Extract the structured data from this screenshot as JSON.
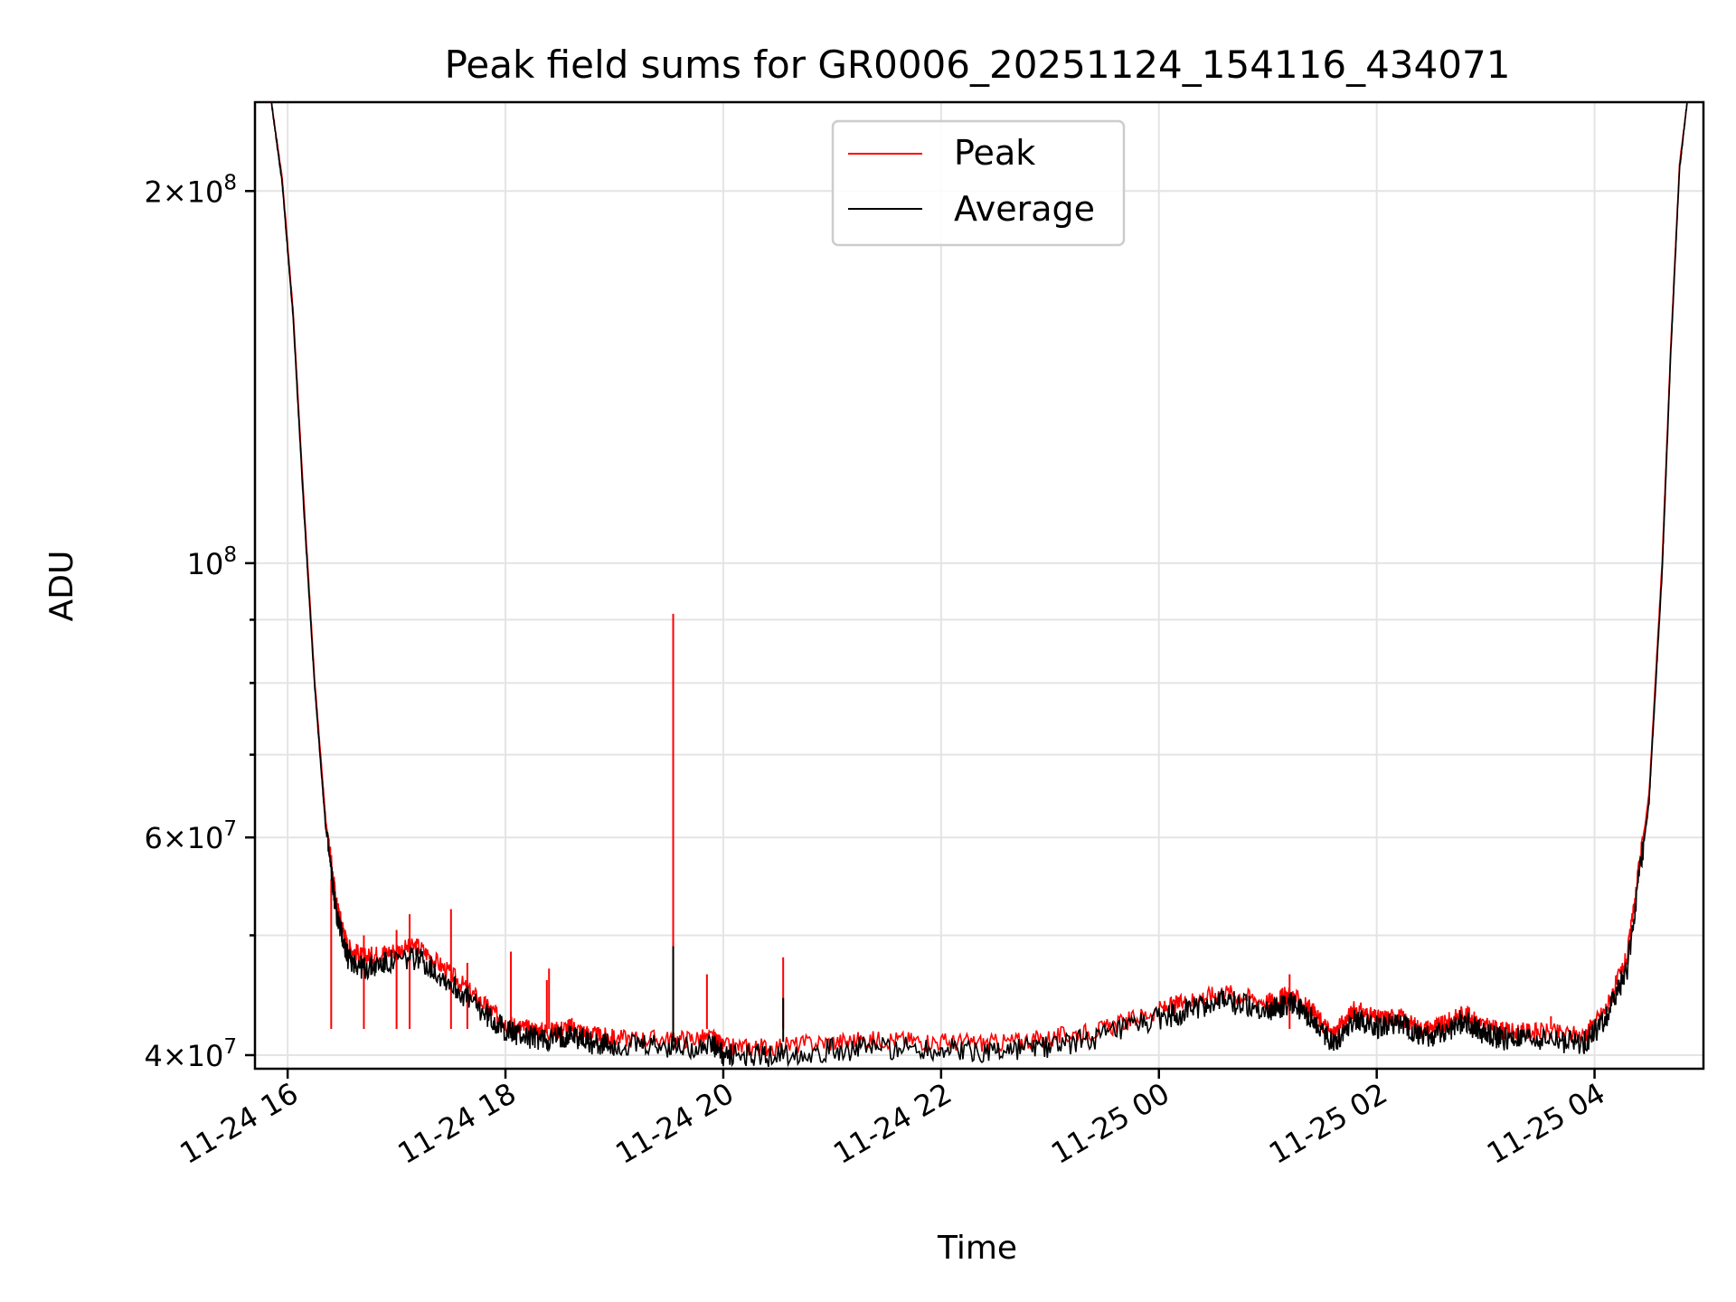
{
  "chart_data": {
    "type": "line",
    "title": "Peak field sums for GR0006_20251124_154116_434071",
    "xlabel": "Time",
    "ylabel": "ADU",
    "yscale": "log",
    "ylim": [
      39000000,
      236000000
    ],
    "xlim_hours": [
      15.7,
      29.0
    ],
    "grid": true,
    "legend_position": "upper center",
    "x_ticks": [
      {
        "hour": 16,
        "label": "11-24 16"
      },
      {
        "hour": 18,
        "label": "11-24 18"
      },
      {
        "hour": 20,
        "label": "11-24 20"
      },
      {
        "hour": 22,
        "label": "11-24 22"
      },
      {
        "hour": 24,
        "label": "11-25 00"
      },
      {
        "hour": 26,
        "label": "11-25 02"
      },
      {
        "hour": 28,
        "label": "11-25 04"
      }
    ],
    "y_ticks": [
      {
        "value": 40000000,
        "base": "4",
        "exp": "7"
      },
      {
        "value": 60000000,
        "base": "6",
        "exp": "7"
      },
      {
        "value": 100000000,
        "base": "",
        "exp": "8"
      },
      {
        "value": 200000000,
        "base": "2",
        "exp": "8"
      }
    ],
    "y_minor_ticks": [
      50000000,
      70000000,
      80000000,
      90000000
    ],
    "series": [
      {
        "name": "Peak",
        "color": "#ff0000",
        "x_hours": [
          15.85,
          15.95,
          16.05,
          16.15,
          16.25,
          16.35,
          16.45,
          16.55,
          16.7,
          16.9,
          17.2,
          17.5,
          17.8,
          18.0,
          18.2,
          18.4,
          18.6,
          18.8,
          19.0,
          19.5,
          19.9,
          20.0,
          20.4,
          21.0,
          21.5,
          22.0,
          22.5,
          23.0,
          23.5,
          24.0,
          24.3,
          24.6,
          25.0,
          25.2,
          25.4,
          25.6,
          25.8,
          26.0,
          26.2,
          26.4,
          26.6,
          26.8,
          27.0,
          27.2,
          27.5,
          27.9,
          28.1,
          28.3,
          28.5,
          28.62,
          28.7,
          28.78,
          28.85
        ],
        "values": [
          236000000,
          205000000,
          160000000,
          112000000,
          80000000,
          62000000,
          53000000,
          49000000,
          48000000,
          48500000,
          49000000,
          46500000,
          44000000,
          42500000,
          42000000,
          41800000,
          42200000,
          41500000,
          41300000,
          41200000,
          41300000,
          40600000,
          40600000,
          41000000,
          41200000,
          41000000,
          40900000,
          41300000,
          42000000,
          43500000,
          44300000,
          45000000,
          44200000,
          44800000,
          43500000,
          41500000,
          43600000,
          42800000,
          43000000,
          42000000,
          42300000,
          43300000,
          42200000,
          41800000,
          41800000,
          41500000,
          43500000,
          48000000,
          65000000,
          100000000,
          150000000,
          210000000,
          236000000
        ],
        "spikes": [
          {
            "hour": 16.4,
            "value": 55500000
          },
          {
            "hour": 16.7,
            "value": 50000000
          },
          {
            "hour": 17.0,
            "value": 50500000
          },
          {
            "hour": 17.12,
            "value": 52000000
          },
          {
            "hour": 17.5,
            "value": 52500000
          },
          {
            "hour": 17.65,
            "value": 47500000
          },
          {
            "hour": 18.05,
            "value": 48500000
          },
          {
            "hour": 18.4,
            "value": 47000000
          },
          {
            "hour": 18.38,
            "value": 46000000
          },
          {
            "hour": 19.54,
            "value": 91000000
          },
          {
            "hour": 19.85,
            "value": 46500000
          },
          {
            "hour": 20.55,
            "value": 48000000
          },
          {
            "hour": 25.2,
            "value": 46500000
          },
          {
            "hour": 27.6,
            "value": 43000000
          }
        ]
      },
      {
        "name": "Average",
        "color": "#000000",
        "x_hours": [
          15.85,
          15.95,
          16.05,
          16.15,
          16.25,
          16.35,
          16.45,
          16.55,
          16.7,
          16.9,
          17.2,
          17.5,
          17.8,
          18.0,
          18.2,
          18.4,
          18.6,
          18.8,
          19.0,
          19.5,
          19.9,
          20.0,
          20.4,
          21.0,
          21.5,
          22.0,
          22.5,
          23.0,
          23.5,
          24.0,
          24.3,
          24.6,
          25.0,
          25.2,
          25.4,
          25.6,
          25.8,
          26.0,
          26.2,
          26.4,
          26.6,
          26.8,
          27.0,
          27.2,
          27.5,
          27.9,
          28.1,
          28.3,
          28.5,
          28.62,
          28.7,
          28.78,
          28.85
        ],
        "values": [
          236000000,
          203000000,
          158000000,
          110000000,
          79000000,
          61000000,
          52000000,
          48000000,
          47000000,
          47500000,
          48000000,
          45700000,
          43300000,
          41900000,
          41400000,
          41200000,
          41600000,
          40900000,
          40700000,
          40600000,
          40700000,
          40000000,
          40000000,
          40400000,
          40600000,
          40400000,
          40300000,
          40700000,
          41400000,
          42800000,
          43600000,
          44300000,
          43500000,
          44100000,
          42800000,
          40900000,
          42900000,
          42200000,
          42400000,
          41400000,
          41700000,
          42700000,
          41600000,
          41200000,
          41200000,
          40900000,
          42800000,
          47000000,
          64000000,
          98000000,
          148000000,
          208000000,
          236000000
        ],
        "spikes": [
          {
            "hour": 19.54,
            "value": 49000000
          },
          {
            "hour": 20.55,
            "value": 44500000
          }
        ]
      }
    ]
  }
}
